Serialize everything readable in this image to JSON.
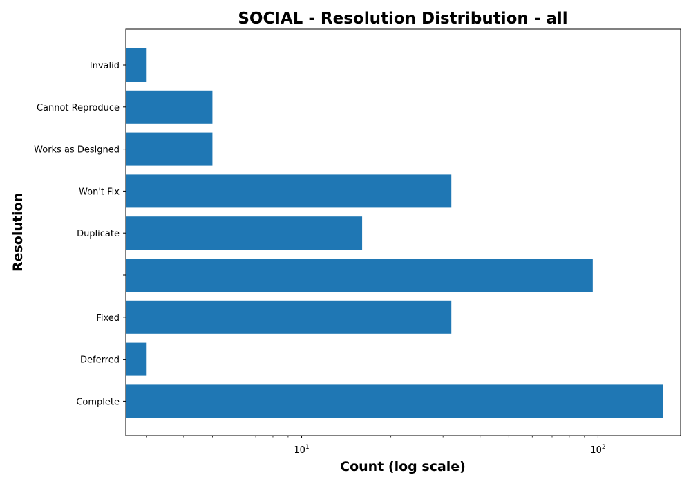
{
  "chart_data": {
    "type": "bar",
    "orientation": "horizontal",
    "title": "SOCIAL - Resolution Distribution - all",
    "xlabel": "Count (log scale)",
    "ylabel": "Resolution",
    "x_scale": "log",
    "xlim": [
      2.55,
      190
    ],
    "x_ticks": [
      {
        "value": 10,
        "base": "10",
        "exp": "1"
      },
      {
        "value": 100,
        "base": "10",
        "exp": "2"
      }
    ],
    "categories": [
      "Invalid",
      "Cannot Reproduce",
      "Works as Designed",
      "Won't Fix",
      "Duplicate",
      "",
      "Fixed",
      "Deferred",
      "Complete"
    ],
    "values": [
      3,
      5,
      5,
      32,
      16,
      96,
      32,
      3,
      166
    ],
    "bar_color": "#1f77b4",
    "grid": false,
    "legend": "none"
  }
}
